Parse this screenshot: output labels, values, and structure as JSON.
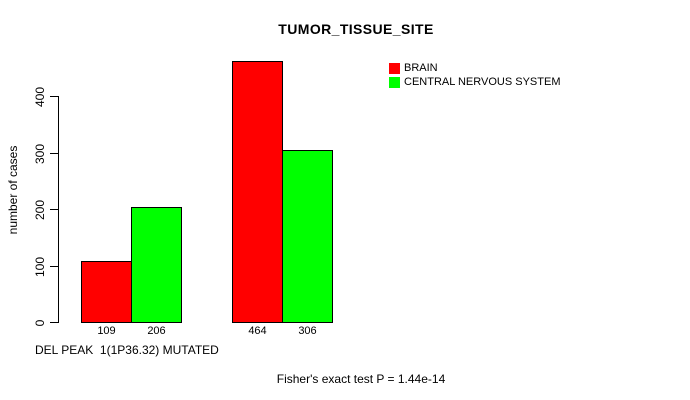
{
  "title": "TUMOR_TISSUE_SITE",
  "x_caption": "DEL PEAK  1(1P36.32) MUTATED",
  "footer": "Fisher's exact test P = 1.44e-14",
  "colors": {
    "brain": "#ff0000",
    "central_nervous_system": "#00ff00",
    "axis": "#000000",
    "background": "#ffffff"
  },
  "chart_data": {
    "type": "bar",
    "title": "TUMOR_TISSUE_SITE",
    "xlabel": "DEL PEAK  1(1P36.32) MUTATED",
    "ylabel": "number of cases",
    "series": [
      {
        "name": "BRAIN",
        "color": "#ff0000",
        "values": [
          109,
          464
        ]
      },
      {
        "name": "CENTRAL NERVOUS SYSTEM",
        "color": "#00ff00",
        "values": [
          206,
          306
        ]
      }
    ],
    "bar_value_labels": [
      "109",
      "206",
      "464",
      "306"
    ],
    "yticks": [
      "0",
      "100",
      "200",
      "300",
      "400"
    ],
    "ylim": [
      0,
      464
    ],
    "grid": false,
    "legend_position": "top-right",
    "annotation": "Fisher's exact test P = 1.44e-14"
  }
}
